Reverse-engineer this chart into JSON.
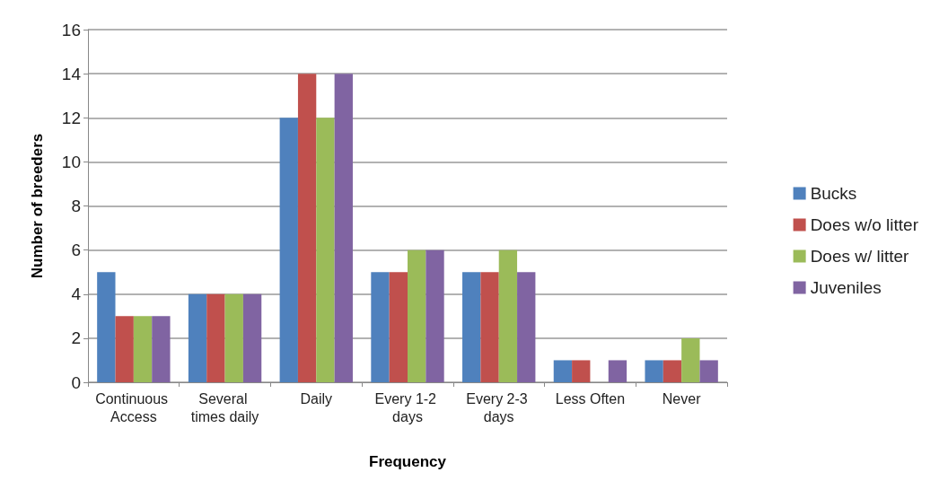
{
  "chart_data": {
    "type": "bar",
    "xlabel": "Frequency",
    "ylabel": "Number of breeders",
    "categories": [
      "Continuous Access",
      "Several times daily",
      "Daily",
      "Every 1-2 days",
      "Every 2-3 days",
      "Less Often",
      "Never"
    ],
    "series": [
      {
        "name": "Bucks",
        "color": "#4f81bd",
        "values": [
          5,
          4,
          12,
          5,
          5,
          1,
          1
        ]
      },
      {
        "name": "Does w/o litter",
        "color": "#c0504d",
        "values": [
          3,
          4,
          14,
          5,
          5,
          1,
          1
        ]
      },
      {
        "name": "Does w/ litter",
        "color": "#9bbb59",
        "values": [
          3,
          4,
          12,
          6,
          6,
          0,
          2
        ]
      },
      {
        "name": "Juveniles",
        "color": "#8064a2",
        "values": [
          3,
          4,
          14,
          6,
          5,
          1,
          1
        ]
      }
    ],
    "ylim": [
      0,
      16
    ],
    "yticks": [
      0,
      2,
      4,
      6,
      8,
      10,
      12,
      14,
      16
    ],
    "grid": "y",
    "legend": "right"
  }
}
